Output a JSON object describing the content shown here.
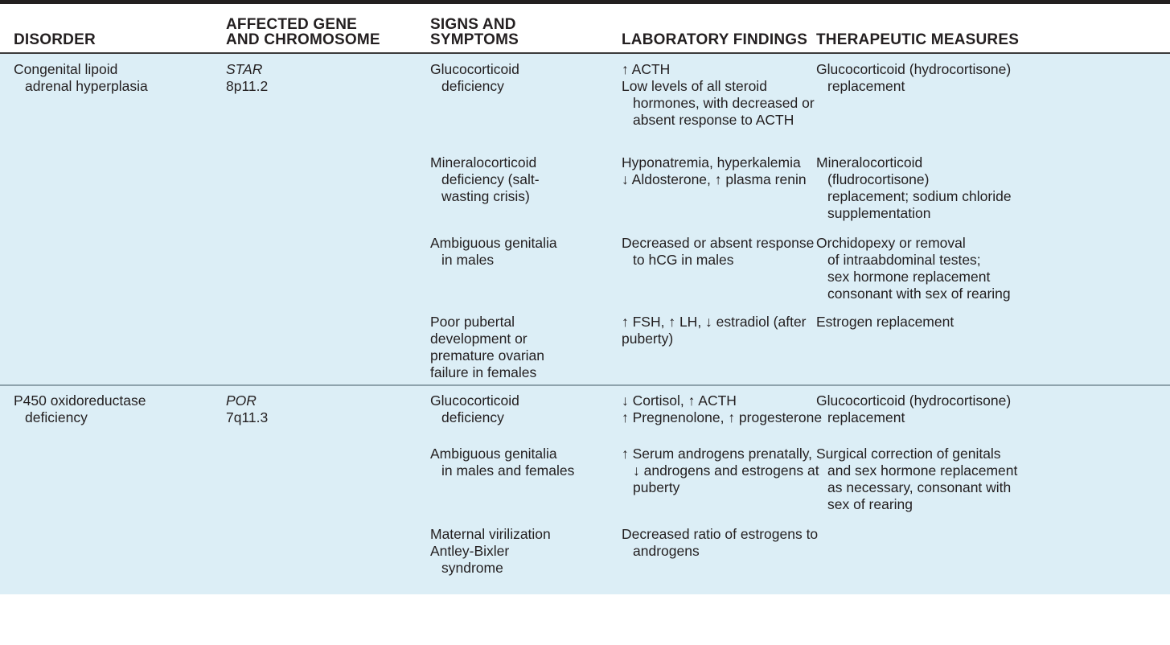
{
  "header": {
    "disorder": [
      "DISORDER"
    ],
    "gene": [
      "AFFECTED GENE",
      "AND CHROMOSOME"
    ],
    "signs": [
      "SIGNS AND",
      "SYMPTOMS"
    ],
    "lab": [
      "LABORATORY FINDINGS"
    ],
    "therapy": [
      "THERAPEUTIC MEASURES"
    ]
  },
  "groups": [
    {
      "disorder": [
        "Congenital lipoid",
        "adrenal hyperplasia"
      ],
      "gene": "STAR",
      "chromosome": "8p11.2",
      "rows": [
        {
          "signs": [
            "Glucocorticoid",
            "deficiency"
          ],
          "lab": [
            "↑ ACTH",
            "Low levels of all steroid",
            "hormones, with decreased or",
            "absent response to ACTH"
          ],
          "therapy": [
            "Glucocorticoid (hydrocortisone)",
            "replacement"
          ]
        },
        {
          "signs": [
            "Mineralocorticoid",
            "deficiency (salt-",
            "wasting crisis)"
          ],
          "lab": [
            "Hyponatremia, hyperkalemia",
            "↓ Aldosterone, ↑ plasma renin"
          ],
          "therapy": [
            "Mineralocorticoid",
            "(fludrocortisone)",
            "replacement; sodium chloride",
            "supplementation"
          ]
        },
        {
          "signs": [
            "Ambiguous genitalia",
            "in males"
          ],
          "lab": [
            "Decreased or absent response",
            "to hCG in males"
          ],
          "therapy": [
            "Orchidopexy or removal",
            "of intraabdominal testes;",
            "sex hormone replacement",
            "consonant with sex of rearing"
          ]
        },
        {
          "signs": [
            "Poor pubertal",
            "development or",
            "premature ovarian",
            "failure in females"
          ],
          "lab": [
            "↑ FSH, ↑ LH, ↓ estradiol (after",
            "puberty)"
          ],
          "therapy": [
            "Estrogen replacement"
          ]
        }
      ]
    },
    {
      "disorder": [
        "P450 oxidoreductase",
        "deficiency"
      ],
      "gene": "POR",
      "chromosome": "7q11.3",
      "rows": [
        {
          "signs": [
            "Glucocorticoid",
            "deficiency"
          ],
          "lab": [
            "↓ Cortisol, ↑ ACTH",
            "↑ Pregnenolone, ↑ progesterone"
          ],
          "therapy": [
            "Glucocorticoid (hydrocortisone)",
            "replacement"
          ]
        },
        {
          "signs": [
            "Ambiguous genitalia",
            "in males and females"
          ],
          "lab": [
            "↑ Serum androgens prenatally,",
            "↓ androgens and estrogens at",
            "puberty"
          ],
          "therapy": [
            "Surgical correction of genitals",
            "and sex hormone replacement",
            "as necessary, consonant with",
            "sex of rearing"
          ]
        },
        {
          "signs": [
            "Maternal virilization",
            "Antley-Bixler",
            "syndrome"
          ],
          "lab": [
            "Decreased ratio of estrogens to",
            "androgens"
          ],
          "therapy": []
        }
      ]
    }
  ]
}
